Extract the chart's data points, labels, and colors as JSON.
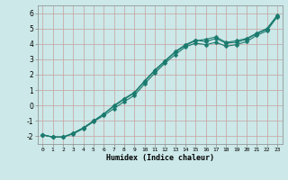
{
  "xlabel": "Humidex (Indice chaleur)",
  "bg_color": "#cce8e8",
  "grid_color": "#aacccc",
  "line_color": "#1a7a6e",
  "xlim": [
    -0.5,
    23.5
  ],
  "ylim": [
    -2.5,
    6.5
  ],
  "xticks": [
    0,
    1,
    2,
    3,
    4,
    5,
    6,
    7,
    8,
    9,
    10,
    11,
    12,
    13,
    14,
    15,
    16,
    17,
    18,
    19,
    20,
    21,
    22,
    23
  ],
  "yticks": [
    -2,
    -1,
    0,
    1,
    2,
    3,
    4,
    5,
    6
  ],
  "series1_x": [
    0,
    1,
    2,
    3,
    4,
    5,
    6,
    7,
    8,
    9,
    10,
    11,
    12,
    13,
    14,
    15,
    16,
    17,
    18,
    19,
    20,
    21,
    22,
    23
  ],
  "series1_y": [
    -1.9,
    -2.05,
    -2.05,
    -1.85,
    -1.5,
    -1.05,
    -0.65,
    -0.2,
    0.25,
    0.65,
    1.4,
    2.1,
    2.75,
    3.3,
    3.8,
    4.05,
    3.95,
    4.1,
    3.85,
    3.95,
    4.15,
    4.55,
    4.85,
    5.75
  ],
  "series2_x": [
    0,
    1,
    2,
    3,
    4,
    5,
    6,
    7,
    8,
    9,
    10,
    11,
    12,
    13,
    14,
    15,
    16,
    17,
    18,
    19,
    20,
    21,
    22,
    23
  ],
  "series2_y": [
    -1.9,
    -2.05,
    -2.05,
    -1.8,
    -1.45,
    -1.0,
    -0.55,
    -0.05,
    0.4,
    0.8,
    1.55,
    2.25,
    2.85,
    3.45,
    3.9,
    4.2,
    4.3,
    4.45,
    4.1,
    4.2,
    4.35,
    4.7,
    5.0,
    5.85
  ],
  "series3_x": [
    0,
    1,
    2,
    3,
    4,
    5,
    6,
    7,
    8,
    9,
    10,
    11,
    12,
    13,
    14,
    15,
    16,
    17,
    18,
    19,
    20,
    21,
    22,
    23
  ],
  "series3_y": [
    -1.9,
    -2.05,
    -2.05,
    -1.8,
    -1.45,
    -1.0,
    -0.55,
    0.0,
    0.45,
    0.85,
    1.6,
    2.3,
    2.9,
    3.5,
    3.95,
    4.25,
    4.15,
    4.35,
    4.05,
    4.1,
    4.3,
    4.65,
    4.95,
    5.8
  ],
  "marker": "D",
  "markersize": 2.5,
  "linewidth": 0.8
}
